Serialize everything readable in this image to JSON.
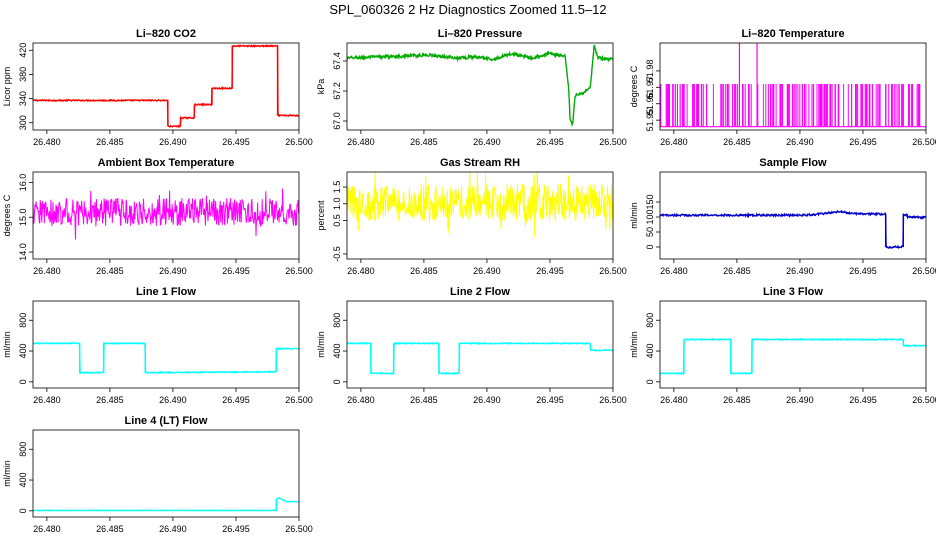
{
  "figure": {
    "title": "SPL_060326  2 Hz Diagnostics Zoomed 11.5–12"
  },
  "chart_data": [
    {
      "type": "line",
      "title": "Li–820 CO2",
      "ylabel": "Licor ppm",
      "color": "#ff0000",
      "xlim": [
        26.4789,
        26.5
      ],
      "x_ticks": [
        "26.480",
        "26.485",
        "26.490",
        "26.495",
        "26.500"
      ],
      "ylim": [
        288,
        432
      ],
      "y_ticks": [
        "300",
        "340",
        "380",
        "420"
      ],
      "noise": 1,
      "x": [
        26.4789,
        26.4896,
        26.4896,
        26.4906,
        26.4906,
        26.4917,
        26.4917,
        26.4931,
        26.4931,
        26.4947,
        26.4947,
        26.4983,
        26.4983,
        26.5
      ],
      "y": [
        337,
        337,
        294,
        294,
        308,
        308,
        330,
        330,
        357,
        357,
        427,
        427,
        312,
        312
      ]
    },
    {
      "type": "line",
      "title": "Li–820 Pressure",
      "ylabel": "kPa",
      "color": "#00aa00",
      "xlim": [
        26.4789,
        26.5
      ],
      "x_ticks": [
        "26.480",
        "26.485",
        "26.490",
        "26.495",
        "26.500"
      ],
      "ylim": [
        66.94,
        67.52
      ],
      "y_ticks": [
        "67.0",
        "67.2",
        "67.4"
      ],
      "noise": 0.01,
      "x": [
        26.4789,
        26.4825,
        26.4855,
        26.4875,
        26.4895,
        26.4905,
        26.492,
        26.4935,
        26.495,
        26.4962,
        26.4965,
        26.4966,
        26.4968,
        26.497,
        26.4975,
        26.4978,
        26.4982,
        26.4985,
        26.4988,
        26.5
      ],
      "y": [
        67.42,
        67.43,
        67.44,
        67.42,
        67.43,
        67.41,
        67.45,
        67.42,
        67.45,
        67.43,
        67.2,
        67.0,
        66.98,
        67.17,
        67.18,
        67.2,
        67.22,
        67.5,
        67.42,
        67.41
      ]
    },
    {
      "type": "line",
      "title": "Li–820 Temperature",
      "ylabel": "degrees C",
      "color": "#ff00ff",
      "xlim": [
        26.4789,
        26.5
      ],
      "x_ticks": [
        "26.480",
        "26.485",
        "26.490",
        "26.495",
        "26.500"
      ],
      "ylim": [
        51.944,
        51.997
      ],
      "y_ticks": [
        "51.95",
        "51.96",
        "51.97",
        "51.98"
      ],
      "base": 51.946,
      "high": 51.972,
      "spikes": [
        26.4795,
        26.4805,
        26.4815,
        26.4826,
        26.4838,
        26.4849,
        26.4852,
        26.4866,
        26.4878,
        26.489,
        26.4902,
        26.4915,
        26.4928,
        26.4941,
        26.4955,
        26.4968,
        26.4982,
        26.4995
      ],
      "peaks": [
        26.4852,
        26.4866
      ]
    },
    {
      "type": "line",
      "title": "Ambient Box Temperature",
      "ylabel": "degrees C",
      "color": "#ff00ff",
      "xlim": [
        26.4789,
        26.5
      ],
      "x_ticks": [
        "26.480",
        "26.485",
        "26.490",
        "26.495",
        "26.500"
      ],
      "ylim": [
        13.8,
        16.3
      ],
      "y_ticks": [
        "14.0",
        "15.0",
        "16.0"
      ],
      "mean": 15.15,
      "amp": 0.5
    },
    {
      "type": "line",
      "title": "Gas Stream RH",
      "ylabel": "percent",
      "color": "#ffff00",
      "xlim": [
        26.4789,
        26.5
      ],
      "x_ticks": [
        "26.480",
        "26.485",
        "26.490",
        "26.495",
        "26.500"
      ],
      "ylim": [
        -0.65,
        1.95
      ],
      "y_ticks": [
        "-0.5",
        "0.5",
        "1.0",
        "1.5"
      ],
      "y_tick_values": [
        -0.5,
        0.5,
        1.0,
        1.5
      ],
      "mean": 1.05,
      "amp": 0.7
    },
    {
      "type": "line",
      "title": "Sample Flow",
      "ylabel": "ml/min",
      "color": "#0000cc",
      "xlim": [
        26.4789,
        26.5
      ],
      "x_ticks": [
        "26.480",
        "26.485",
        "26.490",
        "26.495",
        "26.500"
      ],
      "ylim": [
        -40,
        250
      ],
      "y_ticks": [
        "0",
        "50",
        "100",
        "150"
      ],
      "noise": 3,
      "x": [
        26.4789,
        26.4905,
        26.492,
        26.4932,
        26.494,
        26.495,
        26.4968,
        26.4968,
        26.4982,
        26.4982,
        26.4985,
        26.4985,
        26.5
      ],
      "y": [
        106,
        106,
        112,
        118,
        113,
        110,
        110,
        0,
        0,
        108,
        108,
        100,
        98
      ]
    },
    {
      "type": "line",
      "title": "Line 1 Flow",
      "ylabel": "ml/min",
      "color": "#00ffff",
      "xlim": [
        26.4789,
        26.5
      ],
      "x_ticks": [
        "26.480",
        "26.485",
        "26.490",
        "26.495",
        "26.500"
      ],
      "ylim": [
        -80,
        1050
      ],
      "y_ticks": [
        "0",
        "400",
        "800"
      ],
      "y_tick_values": [
        0,
        400,
        800
      ],
      "noise": 6,
      "x": [
        26.4789,
        26.4826,
        26.4826,
        26.4845,
        26.4845,
        26.4878,
        26.4878,
        26.4982,
        26.4982,
        26.5
      ],
      "y": [
        500,
        500,
        120,
        120,
        500,
        500,
        120,
        130,
        430,
        430
      ]
    },
    {
      "type": "line",
      "title": "Line 2 Flow",
      "ylabel": "ml/min",
      "color": "#00ffff",
      "xlim": [
        26.4789,
        26.5
      ],
      "x_ticks": [
        "26.480",
        "26.485",
        "26.490",
        "26.495",
        "26.500"
      ],
      "ylim": [
        -80,
        1050
      ],
      "y_ticks": [
        "0",
        "400",
        "800"
      ],
      "y_tick_values": [
        0,
        400,
        800
      ],
      "noise": 6,
      "x": [
        26.4789,
        26.4808,
        26.4808,
        26.4826,
        26.4826,
        26.4862,
        26.4862,
        26.4878,
        26.4878,
        26.4982,
        26.4982,
        26.5
      ],
      "y": [
        500,
        500,
        110,
        110,
        500,
        500,
        110,
        110,
        500,
        500,
        410,
        410
      ]
    },
    {
      "type": "line",
      "title": "Line 3 Flow",
      "ylabel": "ml/min",
      "color": "#00ffff",
      "xlim": [
        26.4789,
        26.5
      ],
      "x_ticks": [
        "26.480",
        "26.485",
        "26.490",
        "26.495",
        "26.500"
      ],
      "ylim": [
        -80,
        1050
      ],
      "y_ticks": [
        "0",
        "400",
        "800"
      ],
      "y_tick_values": [
        0,
        400,
        800
      ],
      "noise": 6,
      "x": [
        26.4789,
        26.4808,
        26.4808,
        26.4845,
        26.4845,
        26.4862,
        26.4862,
        26.4982,
        26.4982,
        26.5
      ],
      "y": [
        110,
        110,
        550,
        550,
        110,
        110,
        550,
        550,
        470,
        470
      ]
    },
    {
      "type": "line",
      "title": "Line 4 (LT) Flow",
      "ylabel": "ml/min",
      "color": "#00ffff",
      "xlim": [
        26.4789,
        26.5
      ],
      "x_ticks": [
        "26.480",
        "26.485",
        "26.490",
        "26.495",
        "26.500"
      ],
      "ylim": [
        -80,
        1050
      ],
      "y_ticks": [
        "0",
        "400",
        "800"
      ],
      "y_tick_values": [
        0,
        400,
        800
      ],
      "noise": 3,
      "x": [
        26.4789,
        26.4982,
        26.4982,
        26.4984,
        26.499,
        26.5
      ],
      "y": [
        5,
        5,
        150,
        170,
        120,
        120
      ]
    }
  ]
}
